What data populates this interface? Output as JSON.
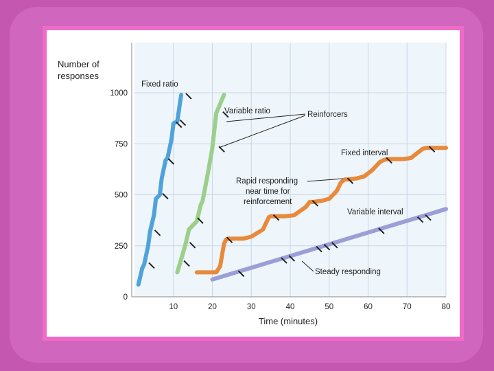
{
  "colors": {
    "background": "#c457b0",
    "frame": "#f06ac8",
    "plot_area": "#eef5fb",
    "grid": "#c9d7e6",
    "fixed_ratio": "#4fa3da",
    "variable_ratio": "#9ccf8a",
    "fixed_interval": "#e88a3c",
    "variable_interval": "#9b9fd6",
    "marker": "#222222"
  },
  "chart_data": {
    "type": "line",
    "title": "",
    "xlabel": "Time (minutes)",
    "ylabel": "Number of responses",
    "xlim": [
      0,
      80
    ],
    "ylim": [
      0,
      1000
    ],
    "xticks": [
      "10",
      "20",
      "30",
      "40",
      "50",
      "60",
      "70",
      "80"
    ],
    "yticks": [
      "0",
      "250",
      "500",
      "750",
      "1000"
    ],
    "grid": true,
    "series": [
      {
        "name": "Fixed ratio",
        "color": "#4fa3da",
        "x": [
          1,
          2,
          2.5,
          3.5,
          4,
          5,
          5.5,
          6.5,
          7,
          8,
          8.5,
          9.5,
          10,
          11,
          12
        ],
        "y": [
          60,
          140,
          160,
          250,
          320,
          400,
          480,
          500,
          580,
          670,
          680,
          770,
          850,
          860,
          990
        ],
        "reinforcers_x": [
          3,
          4.5,
          6.5,
          8,
          10,
          11,
          12.5
        ],
        "reinforcers_y": [
          160,
          320,
          500,
          670,
          850,
          860,
          990
        ]
      },
      {
        "name": "Variable ratio",
        "color": "#9ccf8a",
        "x": [
          11,
          13,
          14,
          16,
          17,
          17.5,
          19,
          20,
          21,
          23
        ],
        "y": [
          120,
          250,
          330,
          370,
          450,
          470,
          620,
          730,
          900,
          990
        ],
        "reinforcers_x": [
          12,
          13.5,
          15.5,
          21,
          22
        ],
        "reinforcers_y": [
          170,
          260,
          380,
          730,
          900
        ]
      },
      {
        "name": "Fixed interval",
        "color": "#e88a3c",
        "x": [
          16,
          21,
          22,
          23,
          23.5,
          24,
          28,
          30,
          33,
          34.5,
          35,
          37,
          39,
          41,
          44,
          45,
          46,
          48,
          50,
          52,
          53,
          54,
          55,
          57,
          59,
          61,
          63,
          64,
          65,
          67,
          69,
          71,
          73,
          74,
          75,
          77,
          80
        ],
        "y": [
          120,
          120,
          150,
          260,
          280,
          285,
          285,
          295,
          330,
          390,
          395,
          395,
          395,
          400,
          440,
          465,
          465,
          470,
          480,
          520,
          560,
          575,
          575,
          580,
          590,
          620,
          660,
          670,
          675,
          675,
          675,
          680,
          710,
          725,
          730,
          730,
          730
        ],
        "reinforcers_x": [
          23,
          35,
          45,
          54,
          64,
          75
        ],
        "reinforcers_y": [
          285,
          395,
          465,
          575,
          675,
          730
        ]
      },
      {
        "name": "Variable interval",
        "color": "#9b9fd6",
        "x": [
          20,
          80
        ],
        "y": [
          85,
          430
        ],
        "reinforcers_x": [
          26,
          37,
          39,
          46,
          48,
          50,
          62,
          72,
          74
        ],
        "reinforcers_y": [
          120,
          185,
          195,
          240,
          250,
          260,
          330,
          385,
          395
        ]
      }
    ],
    "annotations": [
      {
        "text": "Reinforcers"
      },
      {
        "text": "Rapid responding near time for reinforcement"
      },
      {
        "text": "Steady responding"
      }
    ]
  },
  "text": {
    "ylabel_line1": "Number of",
    "ylabel_line2": "responses",
    "xlabel": "Time (minutes)",
    "fixed_ratio": "Fixed ratio",
    "variable_ratio": "Variable ratio",
    "reinforcers": "Reinforcers",
    "fixed_interval": "Fixed interval",
    "rapid_line1": "Rapid responding",
    "rapid_line2": "near time for",
    "rapid_line3": "reinforcement",
    "variable_interval": "Variable interval",
    "steady": "Steady responding"
  }
}
